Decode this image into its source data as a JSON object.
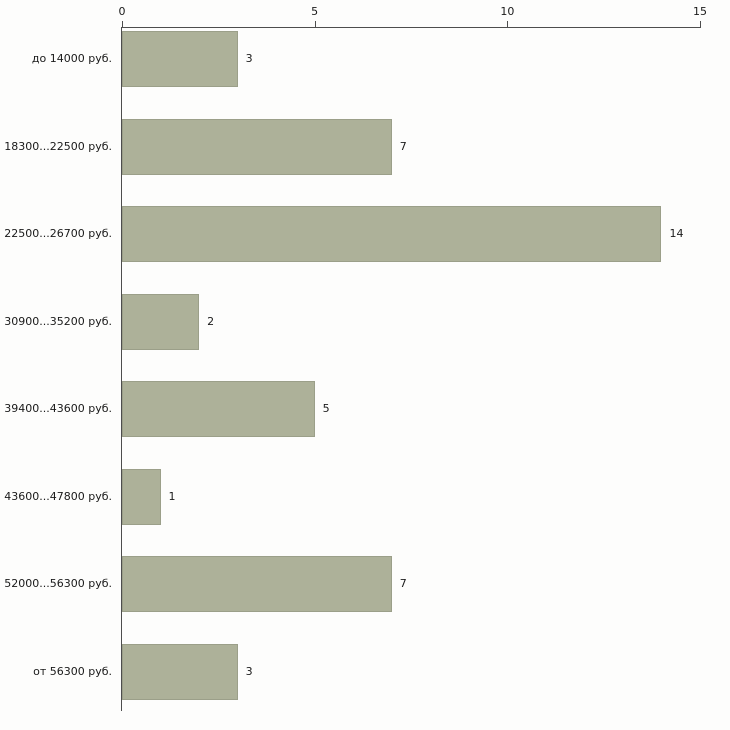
{
  "chart_data": {
    "type": "bar",
    "orientation": "horizontal",
    "title": "",
    "xlabel": "",
    "ylabel": "",
    "categories": [
      "до 14000 руб.",
      "18300...22500 руб.",
      "22500...26700 руб.",
      "30900...35200 руб.",
      "39400...43600 руб.",
      "43600...47800 руб.",
      "52000...56300 руб.",
      "от 56300 руб."
    ],
    "values": [
      3,
      7,
      14,
      2,
      5,
      1,
      7,
      3
    ],
    "xlim": [
      0,
      15
    ],
    "x_ticks": [
      0,
      5,
      10,
      15
    ],
    "grid": false,
    "legend": false,
    "axis_position": "top",
    "colors": {
      "bar_fill": "#adb199",
      "axis_line": "#4d4d4d",
      "text": "#1a1a1a",
      "background": "#fdfdfc"
    }
  }
}
